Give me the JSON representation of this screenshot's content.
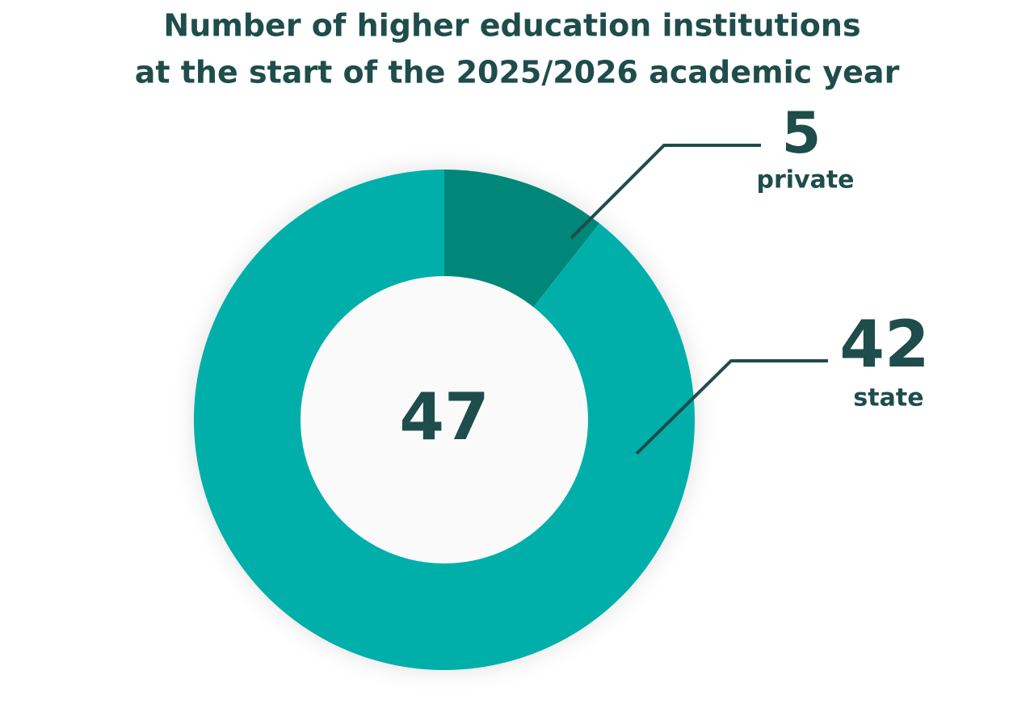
{
  "chart_data": {
    "type": "donut",
    "title": [
      "Number of higher education institutions",
      "at the start of the 2025/2026 academic year"
    ],
    "total": 47,
    "categories": [
      "private",
      "state"
    ],
    "values": [
      5,
      42
    ],
    "colors": [
      "#00877a",
      "#00afaa"
    ]
  }
}
